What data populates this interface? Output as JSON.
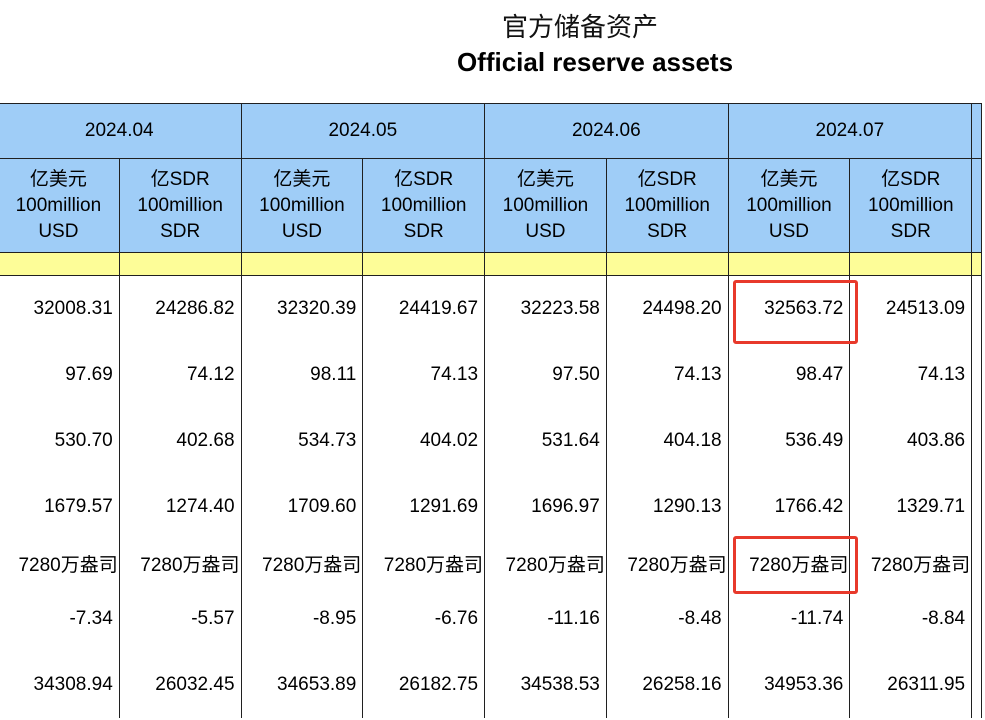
{
  "title": {
    "zh": "官方储备资产",
    "en": "Official reserve assets"
  },
  "periods": [
    "2024.04",
    "2024.05",
    "2024.06",
    "2024.07"
  ],
  "units": {
    "usd": {
      "zh": "亿美元",
      "en1": "100million",
      "en2": "USD"
    },
    "sdr": {
      "zh": "亿SDR",
      "en1": "100million",
      "en2": "SDR"
    }
  },
  "rows": [
    [
      "32008.31",
      "24286.82",
      "32320.39",
      "24419.67",
      "32223.58",
      "24498.20",
      "32563.72",
      "24513.09"
    ],
    [
      "97.69",
      "74.12",
      "98.11",
      "74.13",
      "97.50",
      "74.13",
      "98.47",
      "74.13"
    ],
    [
      "530.70",
      "402.68",
      "534.73",
      "404.02",
      "531.64",
      "404.18",
      "536.49",
      "403.86"
    ],
    [
      "1679.57",
      "1274.40",
      "1709.60",
      "1291.69",
      "1696.97",
      "1290.13",
      "1766.42",
      "1329.71"
    ],
    [
      "7280万盎司",
      "7280万盎司",
      "7280万盎司",
      "7280万盎司",
      "7280万盎司",
      "7280万盎司",
      "7280万盎司",
      "7280万盎司"
    ],
    [
      "-7.34",
      "-5.57",
      "-8.95",
      "-6.76",
      "-11.16",
      "-8.48",
      "-11.74",
      "-8.84"
    ],
    [
      "34308.94",
      "26032.45",
      "34653.89",
      "26182.75",
      "34538.53",
      "26258.16",
      "34953.36",
      "26311.95"
    ]
  ],
  "colors": {
    "header_bg": "#9fcdf7",
    "stripe_bg": "#fdfd98",
    "highlight": "#e8392b"
  }
}
